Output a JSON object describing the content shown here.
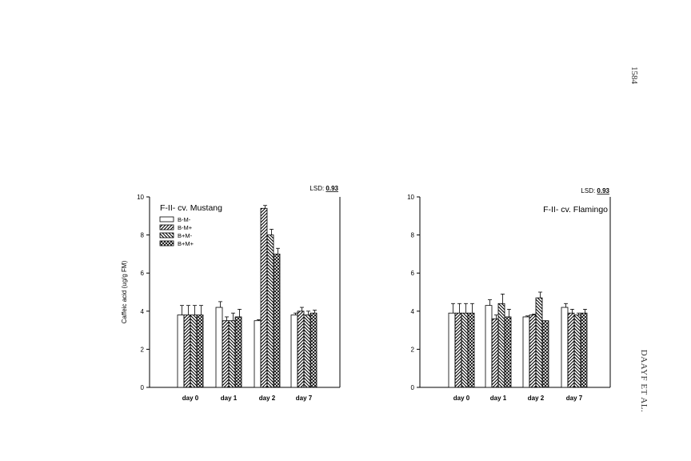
{
  "page": {
    "page_number": "1584",
    "running_head": "DAAYF ET AL."
  },
  "chart_data": [
    {
      "type": "bar",
      "title": "F-II- cv. Mustang",
      "ylabel": "Caffeic acid (ug/g FM)",
      "xlabel": "",
      "ylim": [
        0,
        10
      ],
      "yticks": [
        0,
        2,
        4,
        6,
        8,
        10
      ],
      "grid": false,
      "legend": "top-left",
      "lsd_label": "LSD:",
      "lsd_value": "0.93",
      "categories": [
        "day 0",
        "day 1",
        "day 2",
        "day 7"
      ],
      "series": [
        {
          "name": "B-M-",
          "pattern": "blank",
          "values": [
            3.8,
            4.2,
            3.5,
            3.8
          ],
          "errors": [
            0.5,
            0.3,
            0.05,
            0.1
          ]
        },
        {
          "name": "B-M+",
          "pattern": "forward-hatch",
          "values": [
            3.8,
            3.5,
            9.4,
            4.0
          ],
          "errors": [
            0.5,
            0.2,
            0.15,
            0.2
          ]
        },
        {
          "name": "B+M-",
          "pattern": "back-hatch",
          "values": [
            3.8,
            3.5,
            8.0,
            3.8
          ],
          "errors": [
            0.5,
            0.4,
            0.3,
            0.2
          ]
        },
        {
          "name": "B+M+",
          "pattern": "crosshatch",
          "values": [
            3.8,
            3.7,
            7.0,
            3.9
          ],
          "errors": [
            0.5,
            0.4,
            0.3,
            0.15
          ]
        }
      ]
    },
    {
      "type": "bar",
      "title": "F-II- cv. Flamingo",
      "ylabel": "",
      "xlabel": "",
      "ylim": [
        0,
        10
      ],
      "yticks": [
        0,
        2,
        4,
        6,
        8,
        10
      ],
      "grid": false,
      "legend": "none",
      "lsd_label": "LSD:",
      "lsd_value": "0.93",
      "categories": [
        "day 0",
        "day 1",
        "day 2",
        "day 7"
      ],
      "series": [
        {
          "name": "B-M-",
          "pattern": "blank",
          "values": [
            3.9,
            4.3,
            3.7,
            4.2
          ],
          "errors": [
            0.5,
            0.3,
            0.05,
            0.2
          ]
        },
        {
          "name": "B-M+",
          "pattern": "forward-hatch",
          "values": [
            3.9,
            3.6,
            3.8,
            3.9
          ],
          "errors": [
            0.5,
            0.2,
            0.05,
            0.2
          ]
        },
        {
          "name": "B+M-",
          "pattern": "back-hatch",
          "values": [
            3.9,
            4.4,
            4.7,
            3.8
          ],
          "errors": [
            0.5,
            0.5,
            0.3,
            0.1
          ]
        },
        {
          "name": "B+M+",
          "pattern": "crosshatch",
          "values": [
            3.9,
            3.7,
            3.5,
            3.9
          ],
          "errors": [
            0.5,
            0.4,
            0.0,
            0.2
          ]
        }
      ]
    }
  ]
}
